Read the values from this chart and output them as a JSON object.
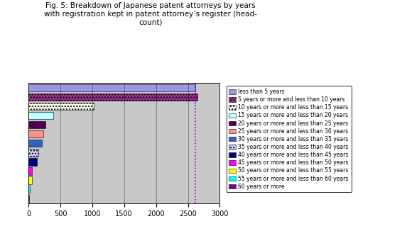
{
  "title": "Fig. 5: Breakdown of Japanese patent attorneys by years\nwith registration kept in patent attorney’s register (head-\ncount)",
  "categories": [
    "60 years or more",
    "55 years or more and less than 60 years",
    "50 years or more and less than 55 years",
    "45 years or more and less than 50 years",
    "40 years or more and less than 45 years",
    "35 years or more and less than 40 years",
    "30 years or more and less than 35 years",
    "25 years or more and less than 30 years",
    "20 years or more and less than 25 years",
    "15 years or more and less than 20 years",
    "10 years or more and less than 15 years",
    "5 years or more and less than 10 years",
    "less than 5 years"
  ],
  "values": [
    10,
    20,
    50,
    60,
    130,
    160,
    215,
    235,
    270,
    390,
    1020,
    2650,
    2620
  ],
  "colors": [
    "#800080",
    "#00FFFF",
    "#FFFF00",
    "#FF00FF",
    "#000080",
    "#D0D0FF",
    "#3060C0",
    "#FF9090",
    "#500050",
    "#C0FFFF",
    "#FFFFF0",
    "#9B3090",
    "#9898E8"
  ],
  "hatch": [
    "",
    "",
    "",
    "",
    "",
    "....",
    "",
    "",
    "",
    "",
    "....",
    "....",
    ""
  ],
  "xlim": [
    0,
    3000
  ],
  "xticks": [
    0,
    500,
    1000,
    1500,
    2000,
    2500,
    3000
  ],
  "bg_color": "#C8C8C8",
  "fig_bg_color": "#FFFFFF",
  "vline_x": 2620,
  "vline_color": "#9900AA"
}
